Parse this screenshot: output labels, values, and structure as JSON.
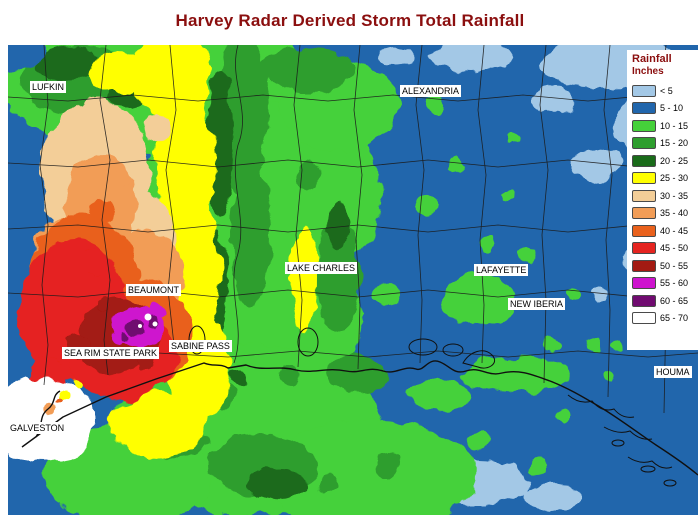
{
  "title": "Harvey Radar Derived Storm Total Rainfall",
  "legend": {
    "title": "Rainfall",
    "subtitle": "Inches",
    "items": [
      {
        "label": "< 5",
        "color": "#A3C8E6"
      },
      {
        "label": "5 - 10",
        "color": "#2166AC"
      },
      {
        "label": "10 - 15",
        "color": "#45D13A"
      },
      {
        "label": "15 - 20",
        "color": "#2E9E2E"
      },
      {
        "label": "20 - 25",
        "color": "#1A6B1A"
      },
      {
        "label": "25 - 30",
        "color": "#FFFF00"
      },
      {
        "label": "30 - 35",
        "color": "#F3CE98"
      },
      {
        "label": "35 - 40",
        "color": "#F29D57"
      },
      {
        "label": "40 - 45",
        "color": "#E9611C"
      },
      {
        "label": "45 - 50",
        "color": "#E52420"
      },
      {
        "label": "50 - 55",
        "color": "#A31A12"
      },
      {
        "label": "55 - 60",
        "color": "#CE14CE"
      },
      {
        "label": "60 - 65",
        "color": "#700B70"
      },
      {
        "label": "65 - 70",
        "color": "#FFFFFF"
      }
    ]
  },
  "map": {
    "labels": [
      {
        "name": "LUFKIN"
      },
      {
        "name": "ALEXANDRIA"
      },
      {
        "name": "LAKE CHARLES"
      },
      {
        "name": "LAFAYETTE"
      },
      {
        "name": "NEW IBERIA"
      },
      {
        "name": "BEAUMONT"
      },
      {
        "name": "SEA RIM STATE PARK"
      },
      {
        "name": "SABINE PASS"
      },
      {
        "name": "GALVESTON"
      },
      {
        "name": "HOUMA"
      }
    ]
  }
}
